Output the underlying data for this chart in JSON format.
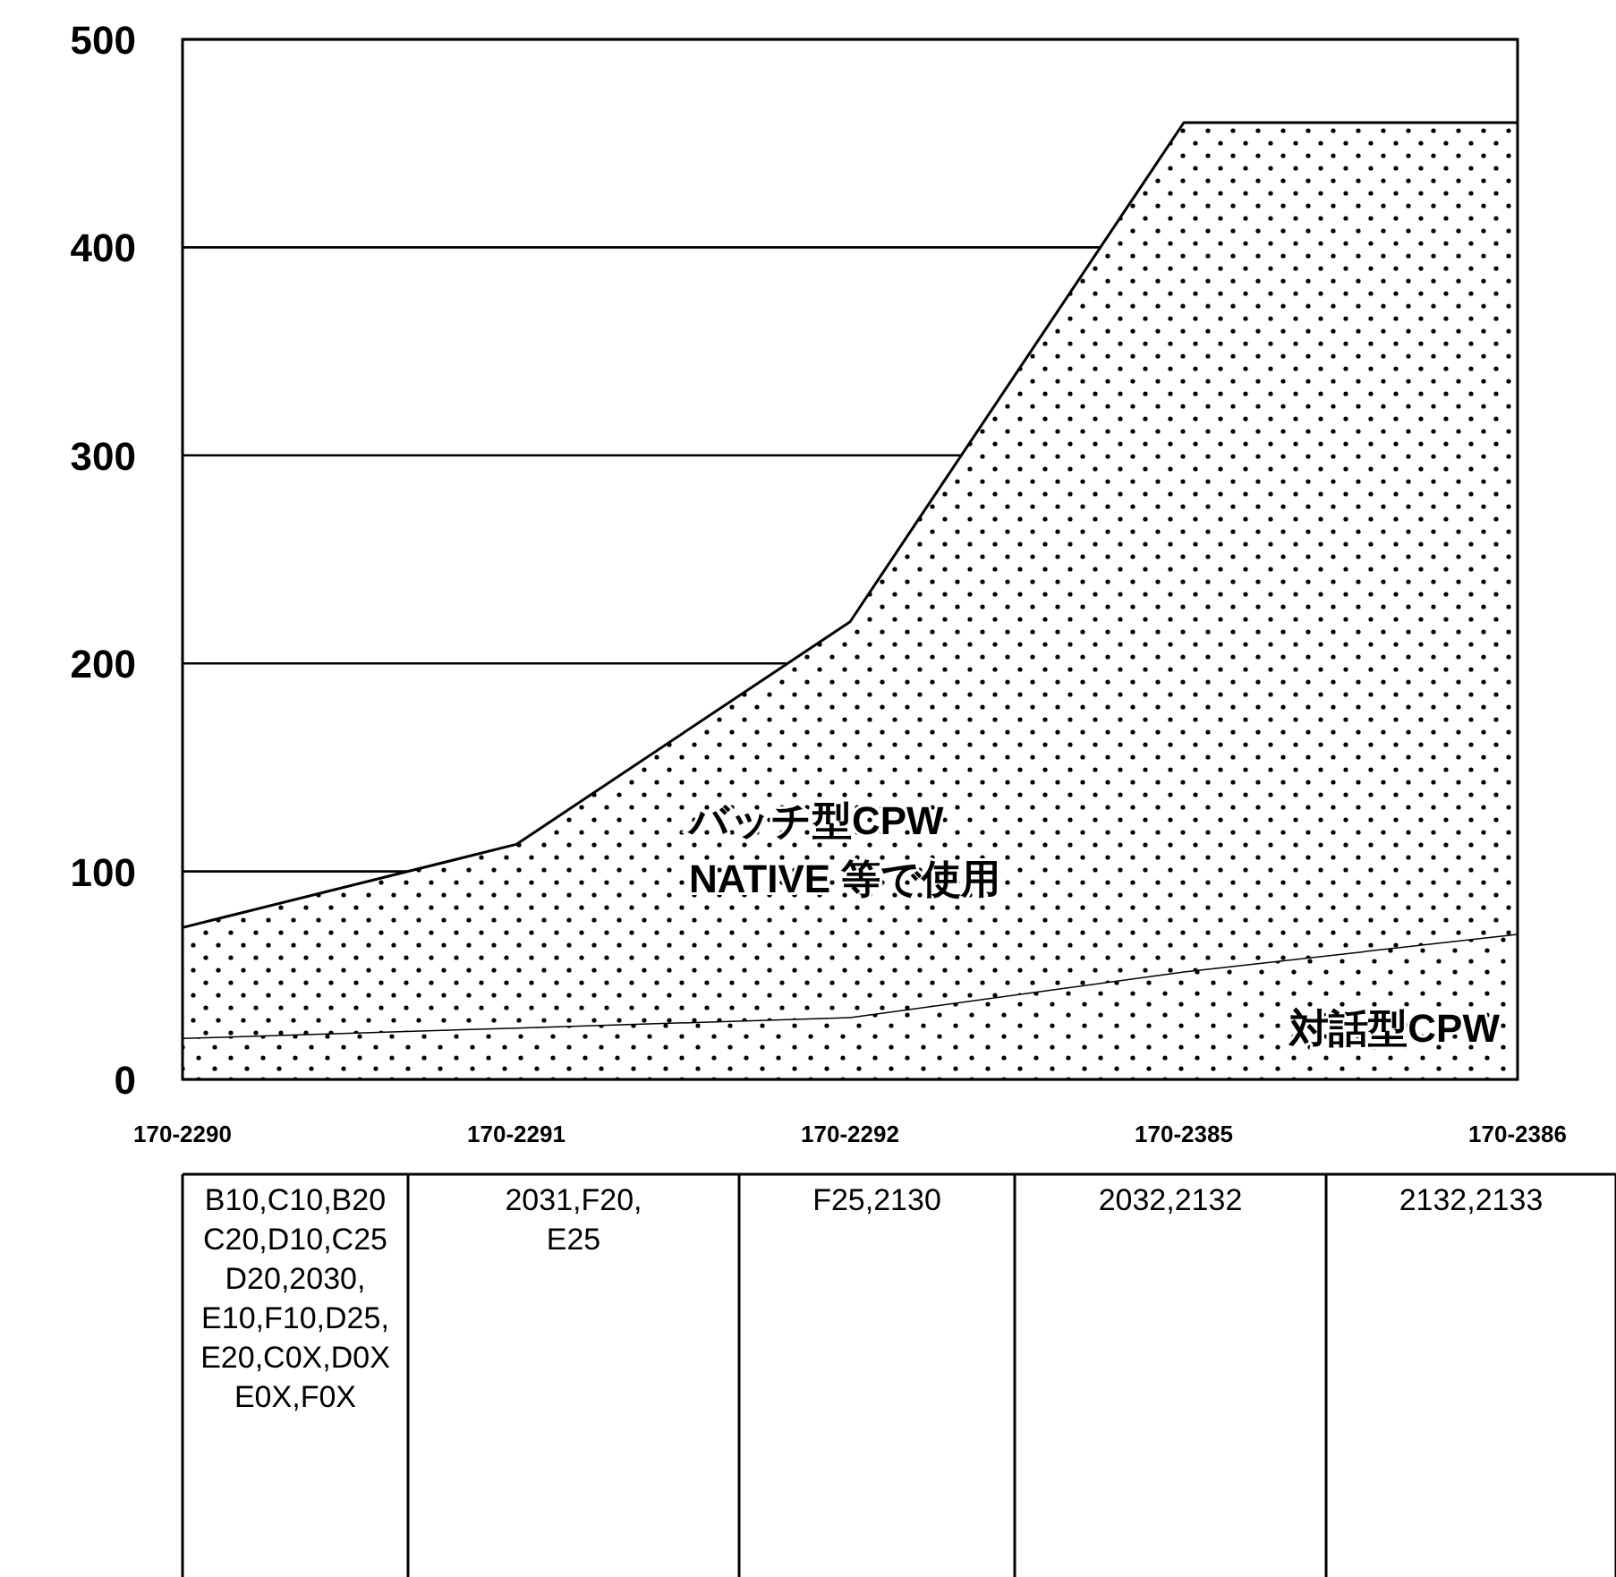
{
  "chart_data": {
    "type": "area",
    "stacked": true,
    "categories": [
      "170-2290",
      "170-2291",
      "170-2292",
      "170-2385",
      "170-2386"
    ],
    "series": [
      {
        "name": "対話型CPW",
        "color": "#000000",
        "values": [
          20,
          25,
          30,
          52,
          70
        ]
      },
      {
        "name": "バッチ型CPW",
        "color": "#000000",
        "values": [
          53,
          88,
          190,
          408,
          390
        ]
      }
    ],
    "ylim": [
      0,
      500
    ],
    "yticks": [
      0,
      100,
      200,
      300,
      400,
      500
    ],
    "grid": "y",
    "annotations": [
      "NATIVE 等で使用",
      "B10,C10,B20\nC20,D10,C25\nD20,2030,\nE10,F10,D25,\nE20,C0X,D0X\nE0X,F0X",
      "2031,F20,\nE25",
      "F25,2130",
      "2032,2132",
      "2132,2133"
    ]
  }
}
